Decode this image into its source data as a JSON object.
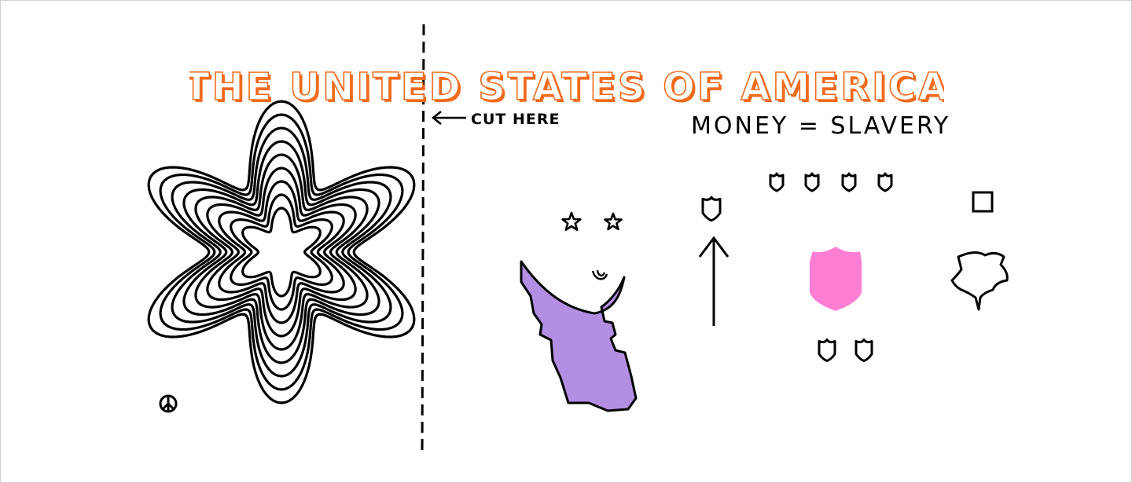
{
  "headline": {
    "text": "THE UNITED STATES OF AMERICA",
    "fill": "#ffffff",
    "outline": "#f26b1d"
  },
  "cut_label": "CUT HERE",
  "subtitle": "MONEY = SLAVERY",
  "colors": {
    "ink": "#000000",
    "portrait_fill": "#b38ee3",
    "shield_fill": "#ff7ed4"
  },
  "icons": [
    "star-of-david-ring-icon",
    "dashed-cut-line",
    "left-arrow-icon",
    "peace-symbol-icon",
    "star-icon",
    "portrait-silhouette-icon",
    "shield-icon",
    "up-arrow-icon",
    "square-icon",
    "eagle-silhouette-icon"
  ]
}
